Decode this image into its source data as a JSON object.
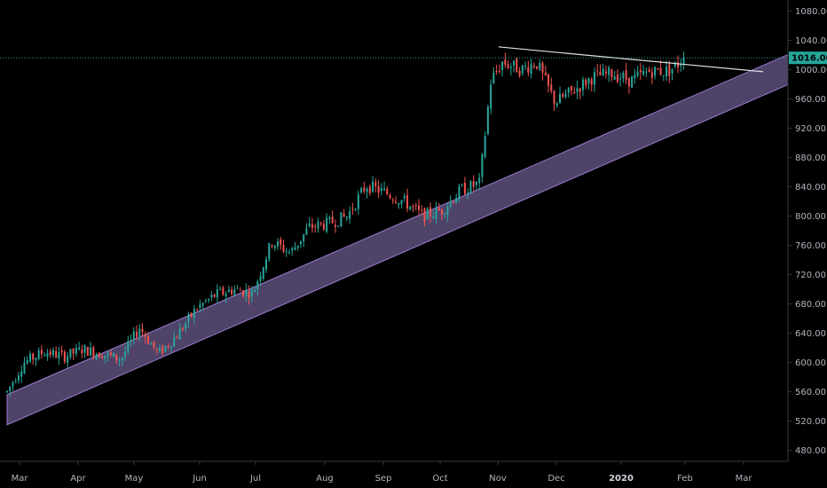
{
  "colors": {
    "background": "#000000",
    "up": "#26a69a",
    "down": "#ef5350",
    "channel_fill": "#5d4f7a",
    "channel_edge": "#9c7bd3",
    "trendline": "#e0e0e0",
    "price_line": "#26a69a",
    "axis_text": "#b2b5be"
  },
  "chart_data": {
    "type": "candlestick",
    "ylim": [
      465,
      1095
    ],
    "y_ticks": [
      "1080.00",
      "1040.00",
      "1000.00",
      "960.00",
      "920.00",
      "880.00",
      "840.00",
      "800.00",
      "760.00",
      "720.00",
      "680.00",
      "640.00",
      "600.00",
      "560.00",
      "520.00",
      "480.00"
    ],
    "x_labels": [
      "Mar",
      "Apr",
      "May",
      "Jun",
      "Jul",
      "Aug",
      "Sep",
      "Oct",
      "Nov",
      "Dec",
      "2020",
      "Feb",
      "Mar"
    ],
    "x_labels_bold": [
      "2020"
    ],
    "last_price": 1016,
    "last_price_label": "1016.00",
    "grid": false,
    "trendline": {
      "start": {
        "t": 0.65,
        "price": 1031
      },
      "end": {
        "t": 1.0,
        "price": 997
      }
    },
    "channel": {
      "upper_start": {
        "t": 0.0,
        "price": 556
      },
      "upper_end": {
        "t": 1.0,
        "price": 1006
      },
      "lower_start": {
        "t": 0.0,
        "price": 515
      },
      "lower_end": {
        "t": 1.0,
        "price": 965
      }
    },
    "anchors": [
      [
        0.0,
        560
      ],
      [
        0.022,
        600
      ],
      [
        0.05,
        615
      ],
      [
        0.075,
        608
      ],
      [
        0.1,
        618
      ],
      [
        0.125,
        612
      ],
      [
        0.15,
        604
      ],
      [
        0.175,
        648
      ],
      [
        0.2,
        612
      ],
      [
        0.225,
        638
      ],
      [
        0.25,
        673
      ],
      [
        0.275,
        692
      ],
      [
        0.3,
        700
      ],
      [
        0.325,
        695
      ],
      [
        0.35,
        765
      ],
      [
        0.375,
        750
      ],
      [
        0.4,
        785
      ],
      [
        0.425,
        790
      ],
      [
        0.45,
        800
      ],
      [
        0.475,
        842
      ],
      [
        0.5,
        832
      ],
      [
        0.525,
        820
      ],
      [
        0.55,
        800
      ],
      [
        0.575,
        808
      ],
      [
        0.6,
        835
      ],
      [
        0.625,
        845
      ],
      [
        0.64,
        985
      ],
      [
        0.655,
        1010
      ],
      [
        0.68,
        1000
      ],
      [
        0.7,
        1010
      ],
      [
        0.725,
        955
      ],
      [
        0.75,
        972
      ],
      [
        0.775,
        990
      ],
      [
        0.8,
        995
      ],
      [
        0.825,
        985
      ],
      [
        0.85,
        998
      ],
      [
        0.875,
        998
      ],
      [
        0.89,
        1010
      ],
      [
        0.895,
        1016
      ]
    ]
  }
}
